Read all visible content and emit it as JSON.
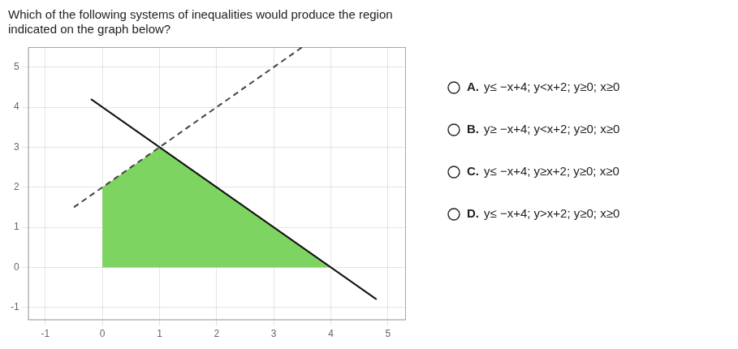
{
  "chart_data": {
    "type": "line",
    "title": [
      "Which of the following systems of inequalities would produce the region",
      "indicated on the graph below?"
    ],
    "annotations": [
      "A. y≤ −x+4; y<x+2; y≥0; x≥0",
      "B. y≥ −x+4; y<x+2; y≥0; x≥0",
      "C. y≤ −x+4; y≥x+2; y≥0; x≥0",
      "D. y≤ −x+4; y>x+2; y≥0; x≥0"
    ],
    "series": [
      {
        "type": "area",
        "color": "#66cc44",
        "x": [
          0,
          0,
          1,
          4
        ],
        "values": [
          0,
          2,
          3,
          0
        ]
      },
      {
        "color": "#111111",
        "line_style": "solid",
        "x": [
          -0.2,
          4.8
        ],
        "values": [
          4.2,
          -0.8
        ]
      },
      {
        "color": "#444444",
        "line_style": "dashed",
        "x": [
          -0.5,
          3.5
        ],
        "values": [
          1.5,
          5.5
        ]
      }
    ],
    "xlim": [
      -1.3,
      5.3
    ],
    "ylim": [
      -1.3,
      5.5
    ],
    "xticks": [
      -1,
      0,
      1,
      2,
      3,
      4,
      5
    ],
    "yticks": [
      -1,
      0,
      1,
      2,
      3,
      4,
      5
    ],
    "grid": true
  }
}
